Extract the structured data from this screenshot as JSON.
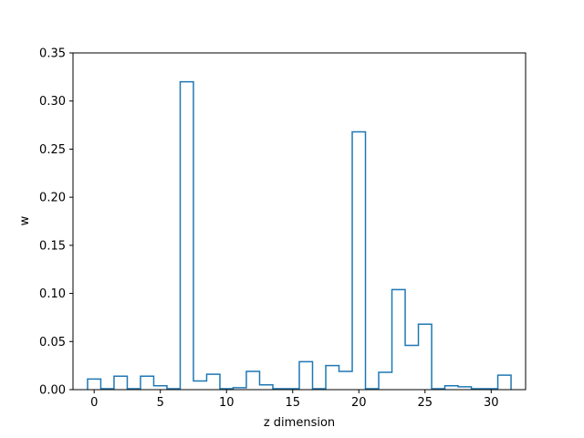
{
  "chart_data": {
    "type": "bar",
    "style": "step-histogram",
    "xlabel": "z dimension",
    "ylabel": "w",
    "xlim": [
      -1.6,
      32.6
    ],
    "ylim": [
      0,
      0.35
    ],
    "grid": false,
    "x": [
      0,
      1,
      2,
      3,
      4,
      5,
      6,
      7,
      8,
      9,
      10,
      11,
      12,
      13,
      14,
      15,
      16,
      17,
      18,
      19,
      20,
      21,
      22,
      23,
      24,
      25,
      26,
      27,
      28,
      29,
      30,
      31
    ],
    "values": [
      0.011,
      0.001,
      0.014,
      0.001,
      0.014,
      0.004,
      0.001,
      0.32,
      0.009,
      0.016,
      0.001,
      0.002,
      0.019,
      0.005,
      0.001,
      0.001,
      0.029,
      0.001,
      0.025,
      0.019,
      0.268,
      0.001,
      0.018,
      0.104,
      0.046,
      0.068,
      0.001,
      0.004,
      0.003,
      0.001,
      0.001,
      0.015
    ],
    "xticks": [
      0,
      5,
      10,
      15,
      20,
      25,
      30
    ],
    "xtick_labels": [
      "0",
      "5",
      "10",
      "15",
      "20",
      "25",
      "30"
    ],
    "yticks": [
      0.0,
      0.05,
      0.1,
      0.15,
      0.2,
      0.25,
      0.3,
      0.35
    ],
    "ytick_labels": [
      "0.00",
      "0.05",
      "0.10",
      "0.15",
      "0.20",
      "0.25",
      "0.30",
      "0.35"
    ],
    "line_color": "#1f77b4"
  }
}
